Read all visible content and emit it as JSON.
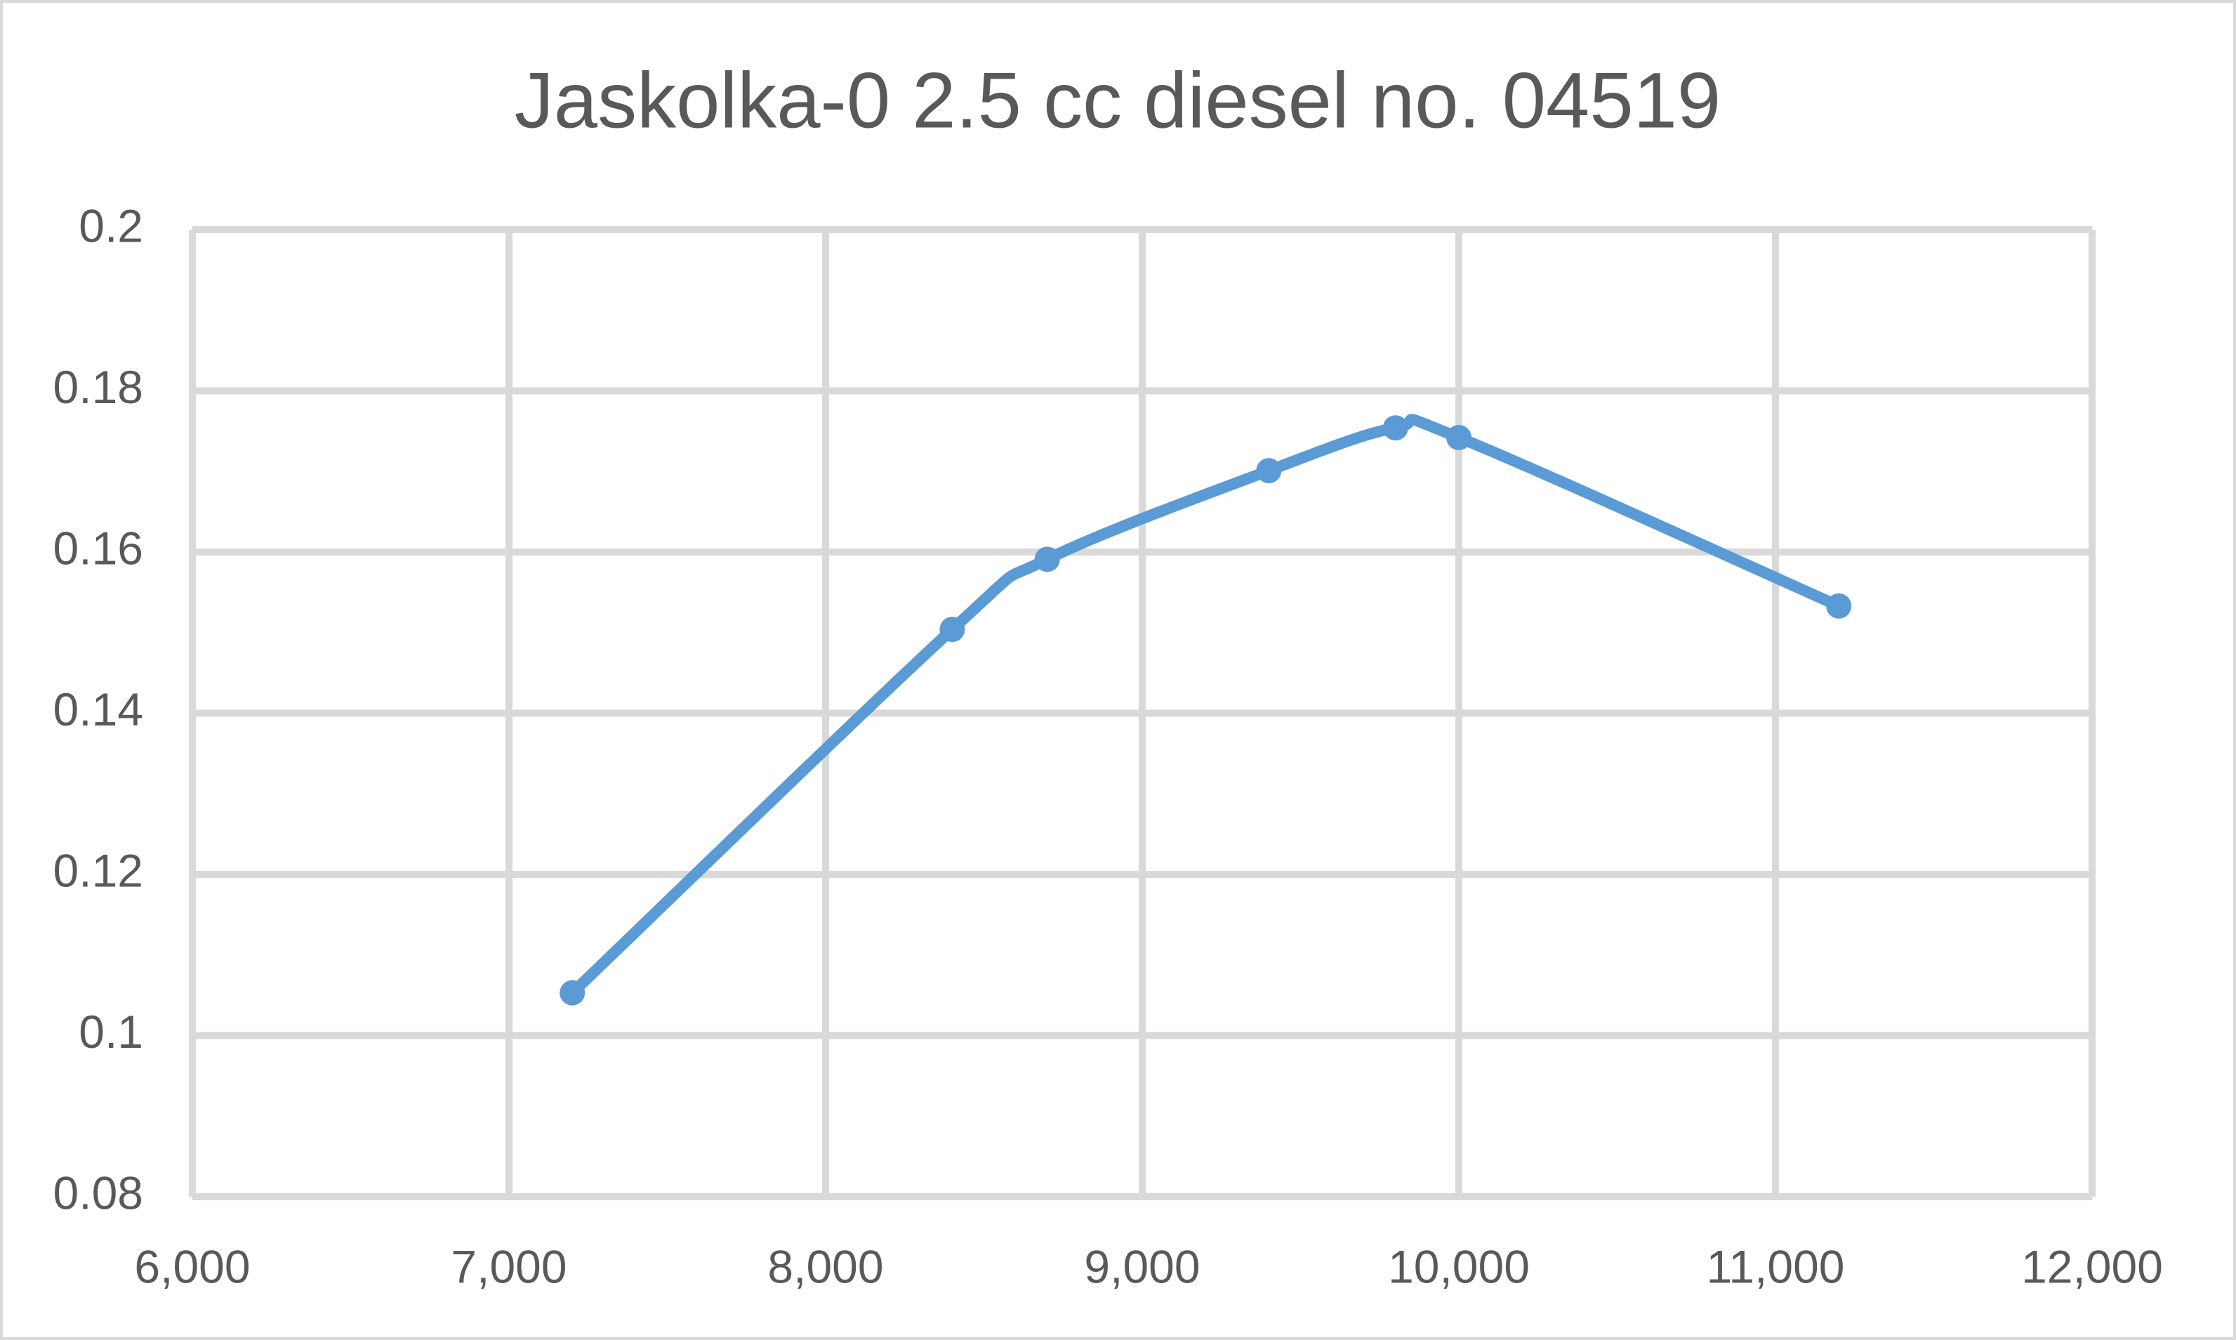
{
  "chart_data": {
    "type": "scatter-line",
    "title": "Jaskolka-0 2.5 cc diesel no. 04519",
    "x": [
      7200,
      8400,
      8700,
      9400,
      9800,
      10000,
      11200
    ],
    "series": [
      {
        "color": "#5b9bd5",
        "values": [
          0.1053,
          0.1504,
          0.1591,
          0.1701,
          0.1754,
          0.1742,
          0.1533
        ]
      }
    ],
    "xlim": [
      6000,
      12000
    ],
    "xticks": [
      {
        "value": 6000,
        "label": "6,000"
      },
      {
        "value": 7000,
        "label": "7,000"
      },
      {
        "value": 8000,
        "label": "8,000"
      },
      {
        "value": 9000,
        "label": "9,000"
      },
      {
        "value": 10000,
        "label": "10,000"
      },
      {
        "value": 11000,
        "label": "11,000"
      },
      {
        "value": 12000,
        "label": "12,000"
      }
    ],
    "ylim": [
      0.08,
      0.2
    ],
    "yticks": [
      0.08,
      0.1,
      0.12,
      0.14,
      0.16,
      0.18,
      0.2
    ],
    "grid": true,
    "smooth": true
  }
}
